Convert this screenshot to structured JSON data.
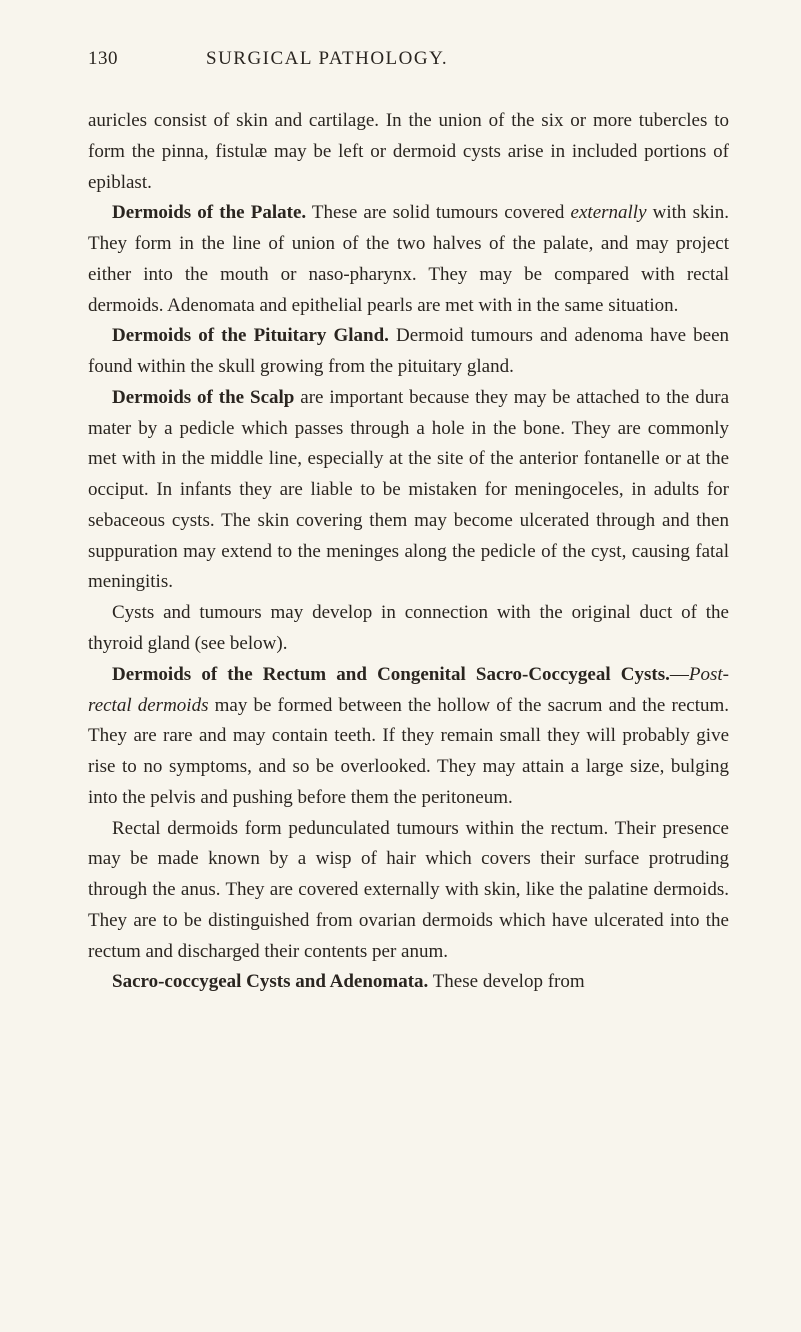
{
  "page": {
    "number": "130",
    "running_title": "SURGICAL PATHOLOGY.",
    "background_color": "#f8f5ed",
    "text_color": "#2a2520",
    "body_fontsize": 19,
    "line_height": 1.62
  },
  "paragraphs": {
    "p1": {
      "text": "auricles consist of skin and cartilage. In the union of the six or more tubercles to form the pinna, fistulæ may be left or dermoid cysts arise in included portions of epiblast."
    },
    "p2": {
      "heading": "Dermoids of the Palate.",
      "pre_italic": " These are solid tumours covered ",
      "italic": "externally",
      "post_italic": " with skin. They form in the line of union of the two halves of the palate, and may project either into the mouth or naso-pharynx. They may be compared with rectal dermoids. Adenomata and epithelial pearls are met with in the same situation."
    },
    "p3": {
      "heading": "Dermoids of the Pituitary Gland.",
      "rest": " Dermoid tumours and adenoma have been found within the skull growing from the pituitary gland."
    },
    "p4": {
      "heading": "Dermoids of the Scalp",
      "rest": " are important because they may be attached to the dura mater by a pedicle which passes through a hole in the bone. They are commonly met with in the middle line, especially at the site of the anterior fontanelle or at the occiput. In infants they are liable to be mistaken for meningoceles, in adults for sebaceous cysts. The skin covering them may become ulcerated through and then suppuration may extend to the meninges along the pedicle of the cyst, causing fatal meningitis."
    },
    "p5": {
      "text": "Cysts and tumours may develop in connection with the original duct of the thyroid gland (see below)."
    },
    "p6": {
      "heading": "Dermoids of the Rectum and Congenital Sacro-Coccygeal Cysts.",
      "dash": "—",
      "italic": "Post-rectal dermoids",
      "rest": " may be formed between the hollow of the sacrum and the rectum. They are rare and may contain teeth. If they remain small they will probably give rise to no symptoms, and so be overlooked. They may attain a large size, bulging into the pelvis and pushing before them the peritoneum."
    },
    "p7": {
      "text": "Rectal dermoids form pedunculated tumours within the rectum. Their presence may be made known by a wisp of hair which covers their surface protruding through the anus. They are covered externally with skin, like the palatine dermoids. They are to be distinguished from ovarian dermoids which have ulcerated into the rectum and discharged their contents per anum."
    },
    "p8": {
      "heading": "Sacro-coccygeal Cysts and Adenomata.",
      "rest": " These develop from"
    }
  }
}
